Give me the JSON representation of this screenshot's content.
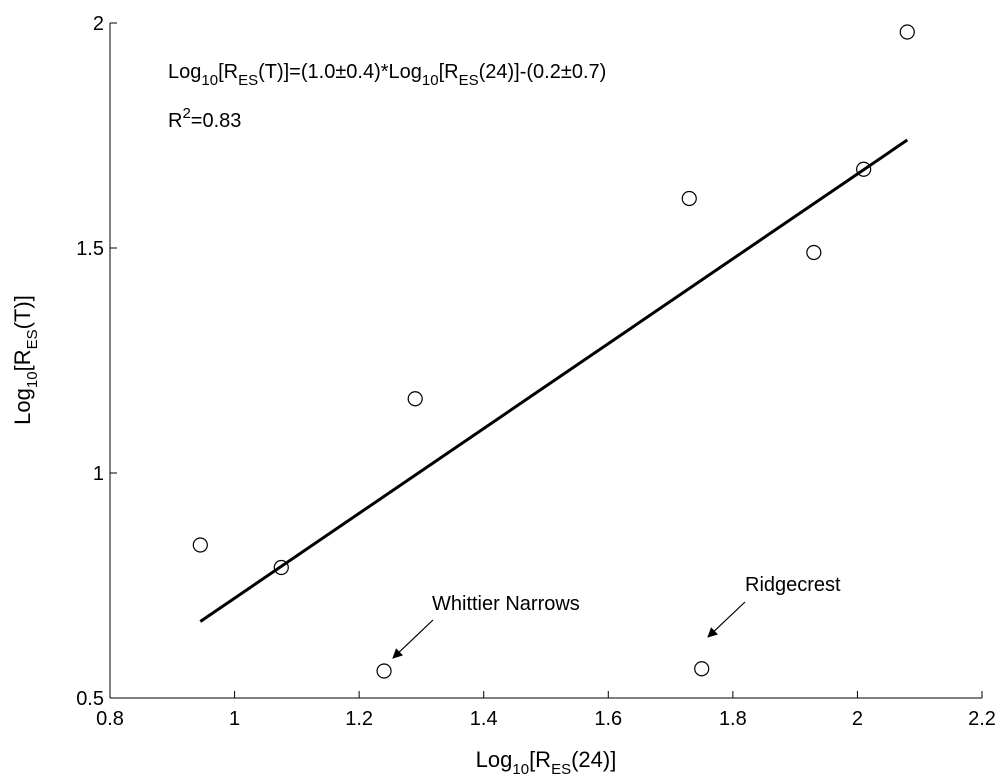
{
  "chart_data": {
    "type": "scatter",
    "xlabel": {
      "base": "Log",
      "sub1": "10",
      "mid": "[R",
      "sub2": "ES",
      "tail": "(24)]"
    },
    "ylabel": {
      "base": "Log",
      "sub1": "10",
      "mid": "[R",
      "sub2": "ES",
      "tail": "(T)]"
    },
    "xlim": [
      0.8,
      2.2
    ],
    "ylim": [
      0.5,
      2.0
    ],
    "xticks": [
      0.8,
      1.0,
      1.2,
      1.4,
      1.6,
      1.8,
      2.0,
      2.2
    ],
    "xtick_labels": [
      "0.8",
      "1",
      "1.2",
      "1.4",
      "1.6",
      "1.8",
      "2",
      "2.2"
    ],
    "yticks": [
      0.5,
      1.0,
      1.5,
      2.0
    ],
    "ytick_labels": [
      "0.5",
      "1",
      "1.5",
      "2"
    ],
    "grid": false,
    "points": [
      {
        "x": 0.945,
        "y": 0.84
      },
      {
        "x": 1.075,
        "y": 0.79
      },
      {
        "x": 1.24,
        "y": 0.56
      },
      {
        "x": 1.29,
        "y": 1.165
      },
      {
        "x": 1.73,
        "y": 1.61
      },
      {
        "x": 1.75,
        "y": 0.565
      },
      {
        "x": 1.93,
        "y": 1.49
      },
      {
        "x": 2.01,
        "y": 1.675
      },
      {
        "x": 2.08,
        "y": 1.98
      }
    ],
    "fit_line": {
      "x": [
        0.945,
        2.08
      ],
      "y": [
        0.67,
        1.74
      ]
    },
    "equation": {
      "p1": "Log",
      "s1": "10",
      "p2": "[R",
      "s2": "ES",
      "p3": "(T)]=(1.0±0.4)*Log",
      "s3": "10",
      "p4": "[R",
      "s4": "ES",
      "p5": "(24)]-(0.2±0.7)"
    },
    "r2": {
      "base": "R",
      "sup": "2",
      "tail": "=0.83"
    },
    "annotations": [
      {
        "label": "Whittier Narrows",
        "point_x": 1.24,
        "point_y": 0.56
      },
      {
        "label": "Ridgecrest",
        "point_x": 1.75,
        "point_y": 0.565
      }
    ]
  }
}
